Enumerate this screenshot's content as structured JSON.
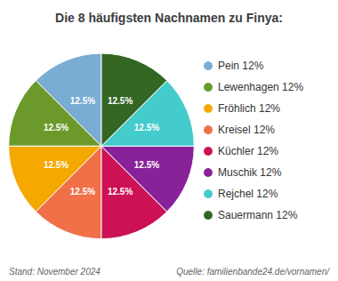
{
  "chart_data": {
    "type": "pie",
    "title": "Die 8 häufigsten Nachnamen zu Finya:",
    "categories": [
      "Pein 12%",
      "Lewenhagen 12%",
      "Fröhlich 12%",
      "Kreisel 12%",
      "Küchler 12%",
      "Muschik 12%",
      "Rejchel 12%",
      "Sauermann 12%"
    ],
    "values": [
      12.5,
      12.5,
      12.5,
      12.5,
      12.5,
      12.5,
      12.5,
      12.5
    ],
    "value_labels": [
      "12.5%",
      "12.5%",
      "12.5%",
      "12.5%",
      "12.5%",
      "12.5%",
      "12.5%",
      "12.5%"
    ],
    "data_labels": true,
    "colors": [
      "#7AADD4",
      "#6B9A2A",
      "#F5A800",
      "#F07048",
      "#CC1155",
      "#882299",
      "#44CCCC",
      "#336622"
    ],
    "legend": "right",
    "annotations": [
      "Stand: November 2024",
      "Quelle: familienbande24.de/vornamen/"
    ]
  }
}
